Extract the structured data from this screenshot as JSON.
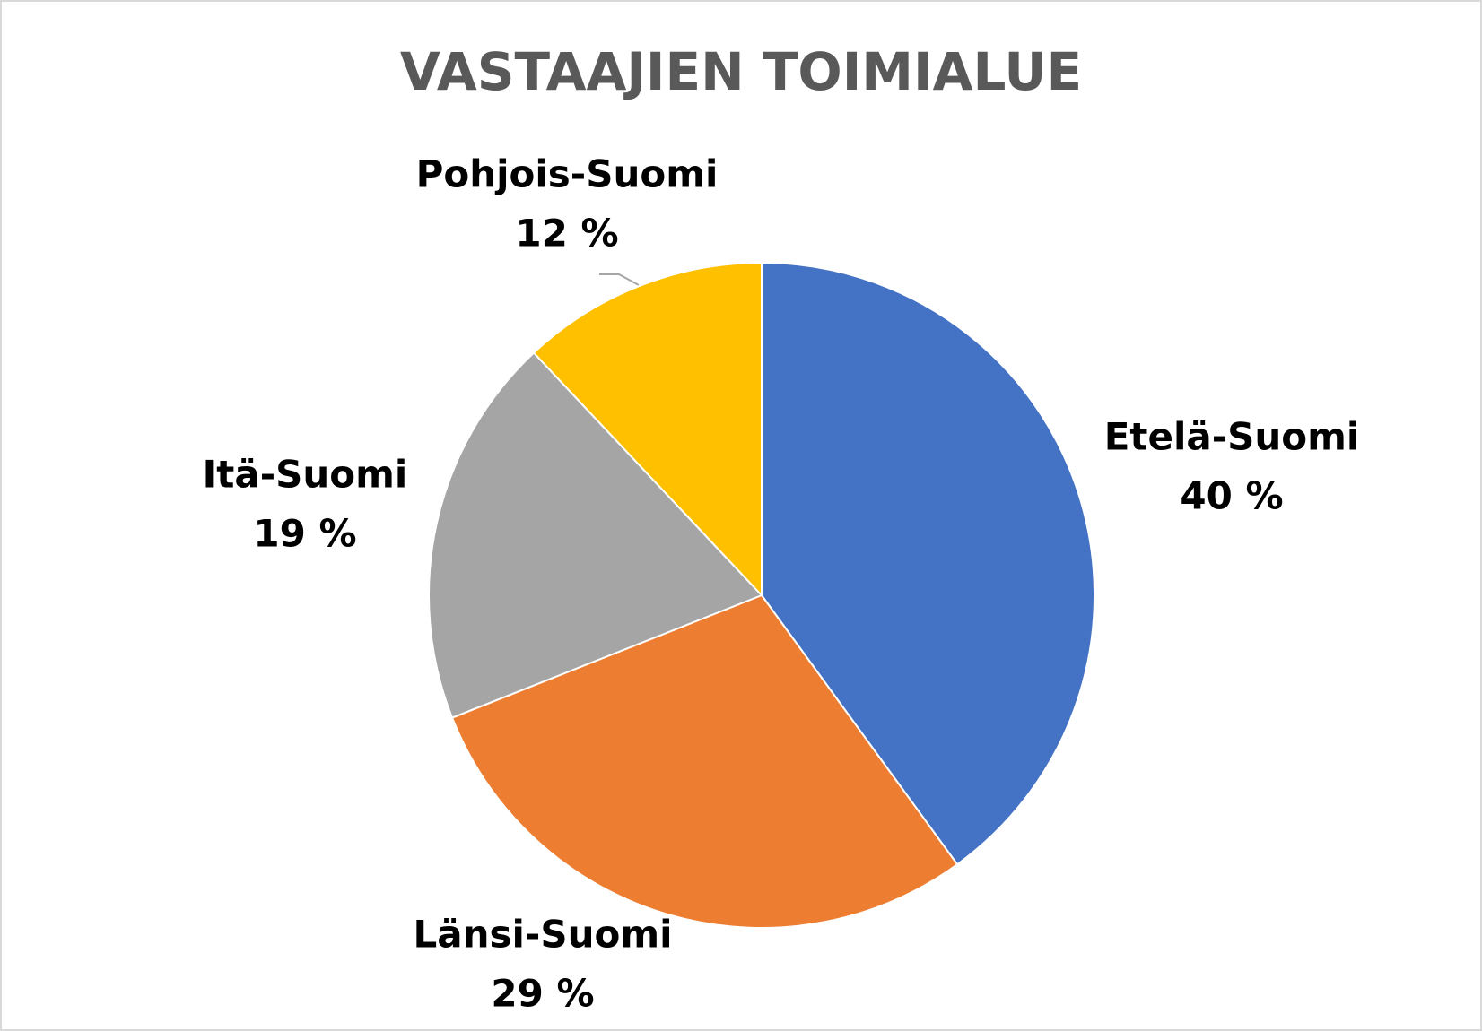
{
  "chart_data": {
    "type": "pie",
    "title": "VASTAAJIEN TOIMIALUE",
    "categories": [
      "Etelä-Suomi",
      "Länsi-Suomi",
      "Itä-Suomi",
      "Pohjois-Suomi"
    ],
    "values": [
      40,
      29,
      19,
      12
    ],
    "value_labels": [
      "40 %",
      "29 %",
      "19 %",
      "12 %"
    ],
    "colors": [
      "#4472c4",
      "#ed7d31",
      "#a5a5a5",
      "#ffc000"
    ]
  }
}
